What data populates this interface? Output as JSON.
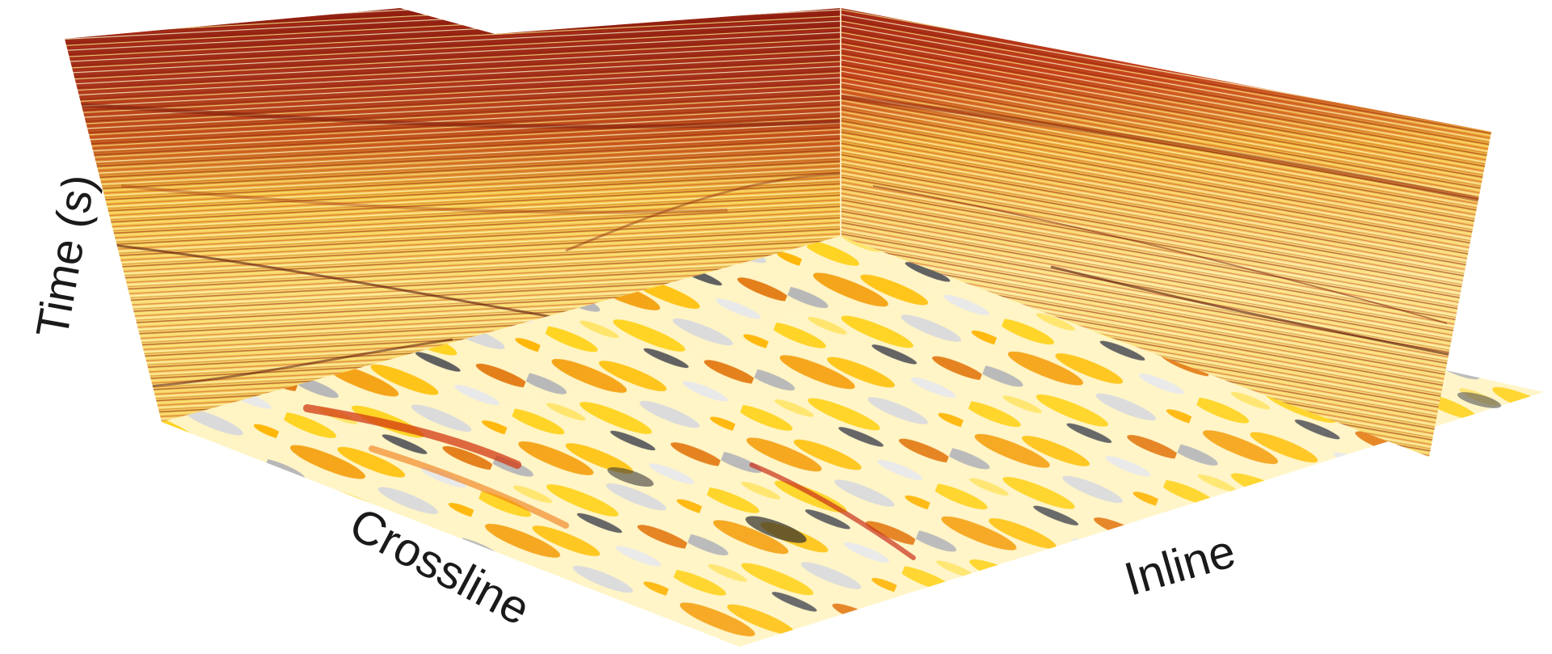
{
  "axes": {
    "time_label": "Time (s)",
    "crossline_label": "Crossline",
    "inline_label": "Inline"
  },
  "colors": {
    "deep_red": "#8e1d0f",
    "red": "#c8301a",
    "orange": "#f08a0e",
    "yellow": "#ffd21a",
    "pale_yellow": "#fff1a8",
    "gray": "#9a9a9a",
    "dark_gray": "#3a3a3a",
    "white": "#ffffff"
  }
}
